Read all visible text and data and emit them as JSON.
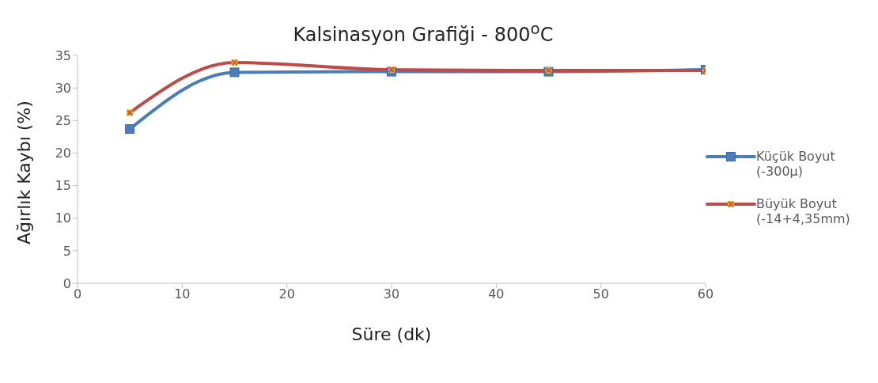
{
  "chart_data": {
    "type": "line",
    "title": "Kalsinasyon Grafiği - 800$^{o}$C",
    "xlabel": "Süre (dk)",
    "ylabel": "Ağırlık  Kaybı  (%)",
    "x": [
      5,
      15,
      30,
      45,
      60
    ],
    "series": [
      {
        "name": "Küçük Boyut (-300µ)",
        "color": "#4a7ebb",
        "marker": "square",
        "values": [
          23.7,
          32.4,
          32.5,
          32.5,
          32.8
        ]
      },
      {
        "name": "Büyük Boyut (-14+4,35mm)",
        "color": "#be4b48",
        "marker": "cross",
        "values": [
          26.2,
          33.9,
          32.8,
          32.7,
          32.7
        ]
      }
    ],
    "xlim": [
      0,
      60
    ],
    "xticks": [
      0,
      10,
      20,
      30,
      40,
      50,
      60
    ],
    "ylim": [
      0,
      35
    ],
    "yticks": [
      0,
      5,
      10,
      15,
      20,
      25,
      30,
      35
    ],
    "grid": false,
    "legend": "right",
    "line_style": "solid"
  }
}
